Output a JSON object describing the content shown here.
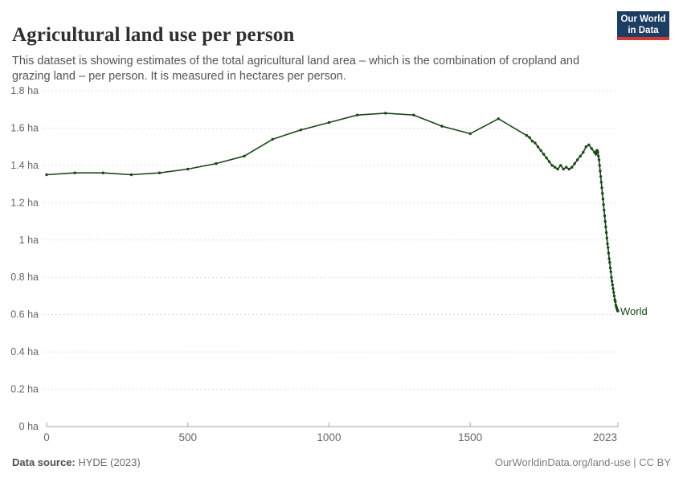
{
  "header": {
    "title": "Agricultural land use per person",
    "subtitle": "This dataset is showing estimates of the total agricultural land area – which is the combination of cropland and grazing land – per person. It is measured in hectares per person.",
    "logo": {
      "line1": "Our World",
      "line2": "in Data",
      "bg_color": "#1d3d63",
      "accent_color": "#cf3b37"
    }
  },
  "footer": {
    "source_label": "Data source:",
    "source_value": " HYDE (2023)",
    "right_text": "OurWorldinData.org/land-use | CC BY"
  },
  "chart_data": {
    "type": "line",
    "title": "Agricultural land use per person",
    "xlabel": "",
    "ylabel": "hectares per person",
    "series_label": "World",
    "color": "#1a4718",
    "grid": true,
    "xlim": [
      0,
      2023
    ],
    "ylim": [
      0,
      1.8
    ],
    "x_ticks": [
      {
        "v": 0,
        "label": "0"
      },
      {
        "v": 500,
        "label": "500"
      },
      {
        "v": 1000,
        "label": "1000"
      },
      {
        "v": 1500,
        "label": "1500"
      },
      {
        "v": 2023,
        "label": "2023"
      }
    ],
    "y_ticks": [
      {
        "v": 0,
        "label": "0 ha"
      },
      {
        "v": 0.2,
        "label": "0.2 ha"
      },
      {
        "v": 0.4,
        "label": "0.4 ha"
      },
      {
        "v": 0.6,
        "label": "0.6 ha"
      },
      {
        "v": 0.8,
        "label": "0.8 ha"
      },
      {
        "v": 1,
        "label": "1 ha"
      },
      {
        "v": 1.2,
        "label": "1.2 ha"
      },
      {
        "v": 1.4,
        "label": "1.4 ha"
      },
      {
        "v": 1.6,
        "label": "1.6 ha"
      },
      {
        "v": 1.8,
        "label": "1.8 ha"
      }
    ],
    "points": [
      [
        0,
        1.35
      ],
      [
        100,
        1.36
      ],
      [
        200,
        1.36
      ],
      [
        300,
        1.35
      ],
      [
        400,
        1.36
      ],
      [
        500,
        1.38
      ],
      [
        600,
        1.41
      ],
      [
        700,
        1.45
      ],
      [
        800,
        1.54
      ],
      [
        900,
        1.59
      ],
      [
        1000,
        1.63
      ],
      [
        1100,
        1.67
      ],
      [
        1200,
        1.68
      ],
      [
        1300,
        1.67
      ],
      [
        1400,
        1.61
      ],
      [
        1500,
        1.57
      ],
      [
        1600,
        1.65
      ],
      [
        1700,
        1.56
      ],
      [
        1710,
        1.55
      ],
      [
        1720,
        1.53
      ],
      [
        1730,
        1.52
      ],
      [
        1740,
        1.5
      ],
      [
        1750,
        1.48
      ],
      [
        1760,
        1.46
      ],
      [
        1770,
        1.44
      ],
      [
        1780,
        1.42
      ],
      [
        1790,
        1.4
      ],
      [
        1800,
        1.39
      ],
      [
        1810,
        1.38
      ],
      [
        1820,
        1.4
      ],
      [
        1830,
        1.38
      ],
      [
        1840,
        1.39
      ],
      [
        1850,
        1.38
      ],
      [
        1860,
        1.39
      ],
      [
        1870,
        1.41
      ],
      [
        1880,
        1.43
      ],
      [
        1890,
        1.45
      ],
      [
        1900,
        1.47
      ],
      [
        1910,
        1.5
      ],
      [
        1920,
        1.51
      ],
      [
        1930,
        1.49
      ],
      [
        1940,
        1.47
      ],
      [
        1945,
        1.46
      ],
      [
        1948,
        1.48
      ],
      [
        1950,
        1.48
      ],
      [
        1952,
        1.47
      ],
      [
        1954,
        1.45
      ],
      [
        1956,
        1.43
      ],
      [
        1958,
        1.4
      ],
      [
        1960,
        1.37
      ],
      [
        1962,
        1.34
      ],
      [
        1964,
        1.31
      ],
      [
        1966,
        1.28
      ],
      [
        1968,
        1.25
      ],
      [
        1970,
        1.22
      ],
      [
        1972,
        1.19
      ],
      [
        1974,
        1.16
      ],
      [
        1976,
        1.13
      ],
      [
        1978,
        1.1
      ],
      [
        1980,
        1.07
      ],
      [
        1982,
        1.04
      ],
      [
        1984,
        1.01
      ],
      [
        1986,
        0.98
      ],
      [
        1988,
        0.96
      ],
      [
        1990,
        0.93
      ],
      [
        1992,
        0.9
      ],
      [
        1994,
        0.88
      ],
      [
        1996,
        0.85
      ],
      [
        1998,
        0.83
      ],
      [
        2000,
        0.8
      ],
      [
        2002,
        0.78
      ],
      [
        2004,
        0.76
      ],
      [
        2006,
        0.74
      ],
      [
        2008,
        0.72
      ],
      [
        2010,
        0.7
      ],
      [
        2012,
        0.68
      ],
      [
        2014,
        0.67
      ],
      [
        2016,
        0.65
      ],
      [
        2018,
        0.64
      ],
      [
        2020,
        0.63
      ],
      [
        2022,
        0.62
      ],
      [
        2023,
        0.62
      ]
    ]
  }
}
